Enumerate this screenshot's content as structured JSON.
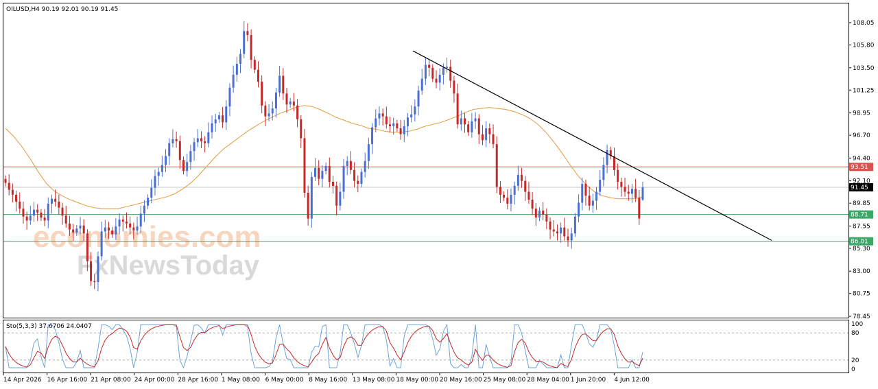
{
  "chart_data": {
    "type": "candlestick",
    "symbol_header": "OILUSD,H4  90.19 92.01 90.19 91.45",
    "ohlc": {
      "open": 90.19,
      "high": 92.01,
      "low": 90.19,
      "close": 91.45
    },
    "y_ticks": [
      "108.05",
      "105.80",
      "103.50",
      "101.25",
      "98.95",
      "96.70",
      "94.40",
      "92.10",
      "89.85",
      "87.55",
      "85.30",
      "83.00",
      "80.75",
      "78.45"
    ],
    "ylim": [
      78.45,
      109.0
    ],
    "x_ticks": [
      "14 Apr 2026",
      "16 Apr 16:00",
      "21 Apr 08:00",
      "24 Apr 00:00",
      "28 Apr 16:00",
      "1 May 08:00",
      "6 May 00:00",
      "8 May 16:00",
      "13 May 08:00",
      "18 May 00:00",
      "20 May 16:00",
      "25 May 08:00",
      "28 May 04:00",
      "1 Jun 20:00",
      "4 Jun 12:00"
    ],
    "price_levels": [
      {
        "label": "93.51",
        "value": 93.51,
        "color": "#d9534f"
      },
      {
        "label": "91.45",
        "value": 91.45,
        "color": "#000000"
      },
      {
        "label": "88.71",
        "value": 88.71,
        "color": "#3ea76a"
      },
      {
        "label": "86.01",
        "value": 86.01,
        "color": "#3ea76a"
      }
    ],
    "trendline": {
      "start": 105.2,
      "end": 86.1
    },
    "series_close": [
      91.9,
      91.2,
      90.7,
      90.0,
      89.3,
      88.5,
      88.1,
      88.6,
      89.2,
      88.9,
      88.4,
      88.1,
      89.8,
      90.3,
      90.0,
      89.4,
      88.6,
      87.8,
      87.2,
      86.9,
      87.3,
      87.6,
      86.8,
      84.0,
      82.0,
      81.9,
      84.5,
      87.0,
      87.4,
      87.1,
      86.7,
      87.5,
      88.2,
      88.0,
      87.8,
      87.4,
      87.1,
      87.5,
      88.8,
      89.6,
      90.4,
      91.4,
      92.6,
      93.0,
      93.7,
      94.6,
      95.9,
      96.3,
      96.1,
      94.2,
      93.1,
      94.0,
      95.1,
      96.0,
      96.4,
      96.1,
      95.9,
      97.0,
      97.9,
      98.3,
      98.7,
      98.0,
      99.6,
      101.5,
      102.8,
      103.9,
      104.9,
      107.2,
      106.8,
      104.3,
      103.3,
      102.1,
      99.7,
      98.6,
      98.9,
      99.4,
      101.0,
      102.7,
      100.9,
      99.8,
      100.1,
      99.7,
      98.3,
      96.4,
      90.9,
      88.3,
      92.5,
      93.4,
      92.3,
      93.1,
      93.6,
      92.0,
      91.6,
      89.6,
      91.0,
      93.6,
      94.1,
      93.2,
      92.1,
      91.8,
      93.0,
      94.1,
      95.8,
      97.5,
      98.4,
      98.9,
      98.6,
      97.8,
      97.6,
      97.9,
      97.4,
      96.8,
      97.6,
      98.5,
      98.8,
      99.6,
      101.2,
      102.4,
      103.8,
      103.5,
      102.4,
      102.0,
      102.8,
      103.5,
      103.6,
      102.2,
      100.9,
      97.8,
      98.4,
      97.8,
      97.0,
      98.1,
      98.4,
      96.8,
      96.2,
      97.4,
      96.8,
      95.8,
      91.5,
      90.7,
      90.4,
      89.8,
      90.7,
      91.6,
      92.7,
      92.1,
      91.0,
      90.2,
      89.3,
      88.4,
      89.1,
      88.7,
      88.0,
      87.2,
      87.0,
      86.8,
      87.4,
      86.5,
      86.1,
      86.8,
      88.5,
      89.9,
      91.8,
      90.6,
      89.6,
      90.1,
      91.0,
      92.2,
      93.7,
      95.2,
      94.6,
      93.2,
      92.0,
      91.5,
      91.0,
      90.8,
      91.3,
      90.4,
      88.3,
      91.45
    ],
    "ma_values": [
      97.4,
      96.6,
      95.6,
      94.4,
      93.1,
      91.9,
      91.1,
      90.6,
      90.2,
      89.9,
      89.6,
      89.4,
      89.3,
      89.3,
      89.3,
      89.5,
      89.7,
      89.9,
      90.1,
      90.3,
      90.5,
      90.8,
      91.3,
      91.9,
      92.7,
      93.6,
      94.5,
      95.3,
      95.9,
      96.5,
      97.1,
      97.6,
      98.1,
      98.5,
      98.9,
      99.2,
      99.5,
      99.7,
      99.6,
      99.3,
      98.9,
      98.5,
      98.2,
      97.9,
      97.7,
      97.4,
      97.3,
      97.1,
      97.0,
      97.0,
      97.1,
      97.3,
      97.6,
      97.8,
      98.0,
      98.3,
      98.6,
      99.0,
      99.3,
      99.4,
      99.5,
      99.4,
      99.3,
      99.1,
      98.8,
      98.4,
      97.8,
      97.0,
      96.0,
      94.9,
      93.7,
      92.6,
      91.7,
      91.0,
      90.6,
      90.4,
      90.3,
      90.3,
      90.3,
      90.5
    ],
    "stochastic": {
      "label": "Sto(5,3,3) 37.6706 24.0407",
      "k": 37.6706,
      "d": 24.0407,
      "ticks": [
        "100",
        "80",
        "20",
        "0"
      ],
      "levels": [
        80,
        20
      ]
    }
  },
  "watermark": {
    "line1": "economies.com",
    "line2": "FxNewsToday"
  },
  "colors": {
    "bull": "#4a6fd1",
    "bear": "#c62828",
    "ma": "#e39a3b",
    "trend": "#000000",
    "k_line": "#6aa3d8",
    "d_line": "#c62828"
  }
}
